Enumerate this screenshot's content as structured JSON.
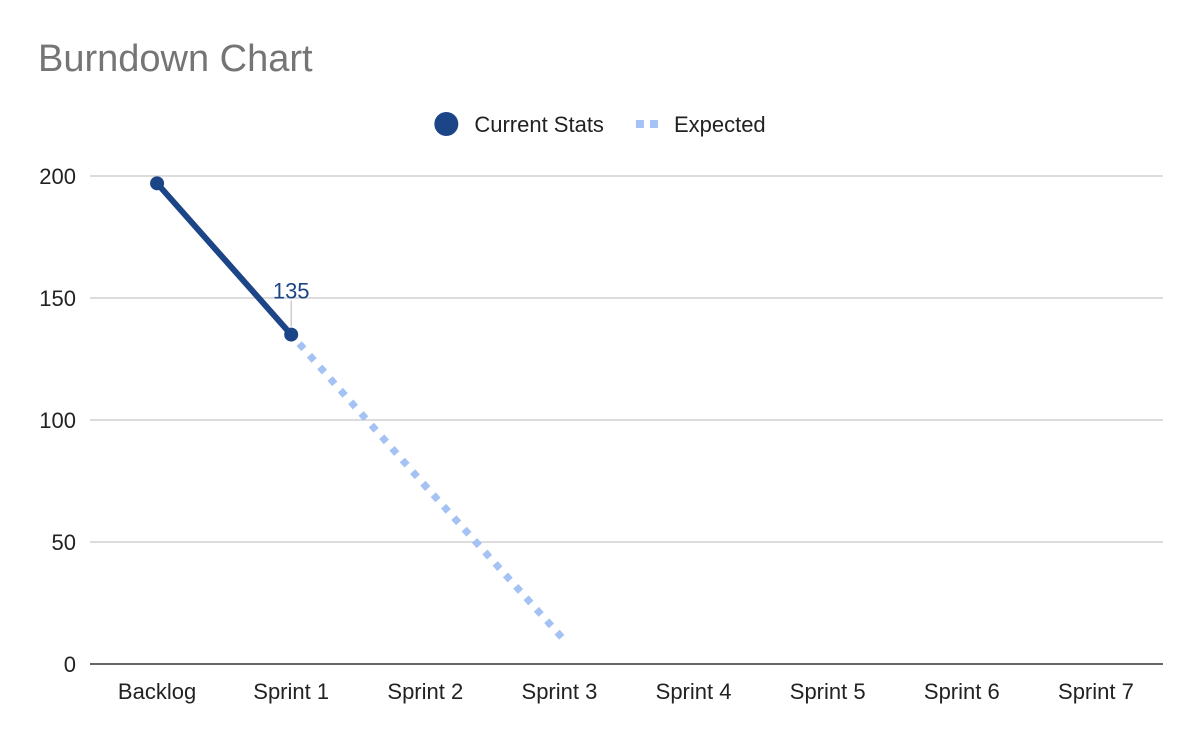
{
  "chart_data": {
    "type": "line",
    "title": "Burndown Chart",
    "xlabel": "",
    "ylabel": "",
    "categories": [
      "Backlog",
      "Sprint 1",
      "Sprint 2",
      "Sprint 3",
      "Sprint 4",
      "Sprint 5",
      "Sprint 6",
      "Sprint 7"
    ],
    "ylim": [
      0,
      200
    ],
    "yticks": [
      0,
      50,
      100,
      150,
      200
    ],
    "grid": true,
    "legend_position": "top",
    "series": [
      {
        "name": "Current Stats",
        "color": "#1c4587",
        "style": "solid",
        "marker": "circle",
        "values": [
          197,
          135,
          null,
          null,
          null,
          null,
          null,
          null
        ]
      },
      {
        "name": "Expected",
        "color": "#a4c2f4",
        "style": "dotted",
        "marker": "none",
        "values": [
          null,
          135,
          73,
          12,
          null,
          null,
          null,
          null
        ]
      }
    ],
    "annotations": [
      {
        "series": "Current Stats",
        "category": "Sprint 1",
        "text": "135"
      }
    ]
  }
}
